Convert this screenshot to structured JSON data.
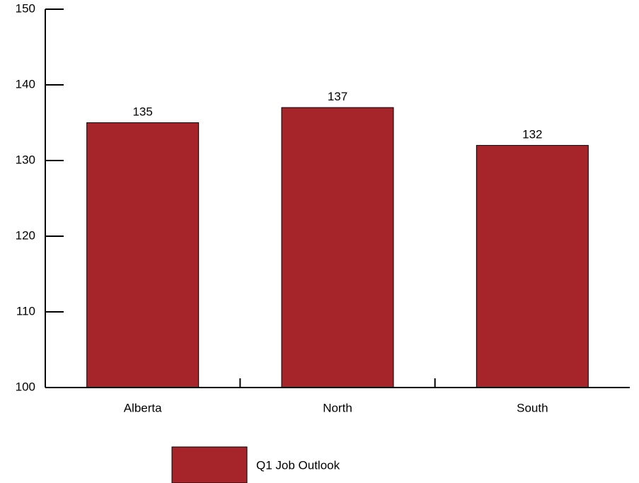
{
  "chart_data": {
    "type": "bar",
    "categories": [
      "Alberta",
      "North",
      "South"
    ],
    "series": [
      {
        "name": "Q1 Job Outlook",
        "values": [
          135,
          137,
          132
        ],
        "color": "#a5252b"
      }
    ],
    "data_labels": [
      "135",
      "137",
      "132"
    ],
    "yticks": [
      "100",
      "110",
      "120",
      "130",
      "140",
      "150"
    ],
    "ylim": [
      100,
      150
    ],
    "grid": false,
    "legend_position": "bottom"
  }
}
